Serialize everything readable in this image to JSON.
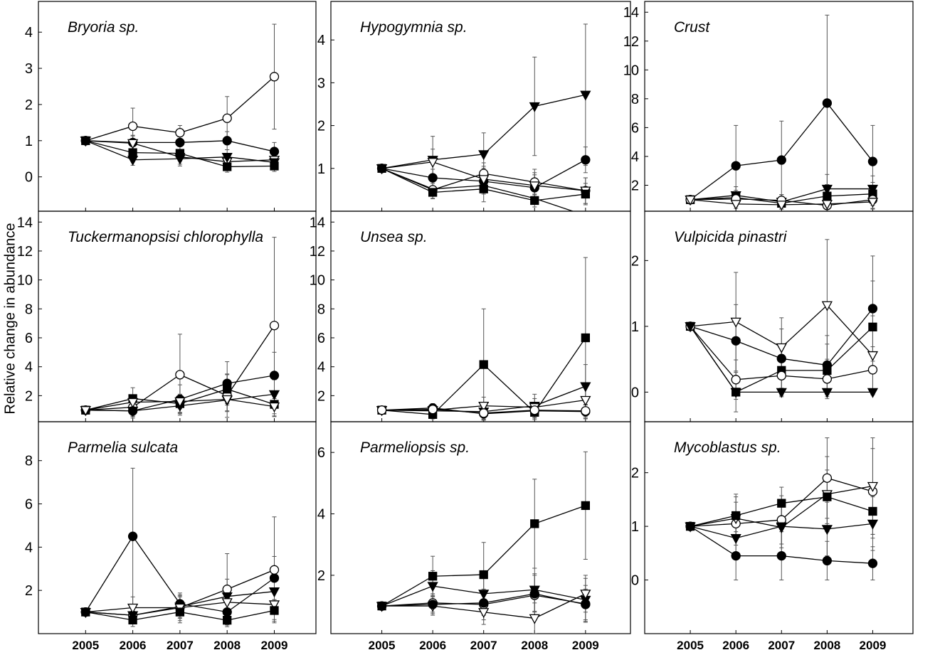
{
  "figure": {
    "ylabel": "Relative change in abundance",
    "years": [
      "2005",
      "2006",
      "2007",
      "2008",
      "2009"
    ]
  },
  "chart_data": [
    {
      "type": "line",
      "title": "Bryoria sp.",
      "x": [
        2005,
        2006,
        2007,
        2008,
        2009
      ],
      "ylim": [
        -0.95,
        4.85
      ],
      "yticks": [
        0,
        1,
        2,
        3,
        4
      ],
      "series": [
        {
          "marker": "circle-open",
          "values": [
            1.0,
            1.4,
            1.22,
            1.62,
            2.77
          ],
          "err": [
            0,
            0.5,
            0.2,
            0.6,
            1.45
          ]
        },
        {
          "marker": "circle-filled",
          "values": [
            1.0,
            0.95,
            0.95,
            1.0,
            0.7
          ],
          "err": [
            0,
            0.2,
            0.2,
            0.25,
            0.25
          ]
        },
        {
          "marker": "triangle-open",
          "values": [
            1.0,
            0.93,
            0.55,
            0.42,
            0.47
          ],
          "err": [
            0,
            0.2,
            0.2,
            0.2,
            0.2
          ]
        },
        {
          "marker": "square-filled",
          "values": [
            1.0,
            0.67,
            0.65,
            0.28,
            0.3
          ],
          "err": [
            0,
            0.2,
            0.2,
            0.15,
            0.15
          ]
        },
        {
          "marker": "triangle-filled",
          "values": [
            1.0,
            0.47,
            0.5,
            0.55,
            0.4
          ],
          "err": [
            0,
            0.15,
            0.2,
            0.2,
            0.2
          ]
        }
      ]
    },
    {
      "type": "line",
      "title": "Hypogymnia sp.",
      "x": [
        2005,
        2006,
        2007,
        2008,
        2009
      ],
      "ylim": [
        -0.0,
        4.9
      ],
      "yticks": [
        1,
        2,
        3,
        4
      ],
      "series": [
        {
          "marker": "triangle-filled",
          "values": [
            1.0,
            1.2,
            1.33,
            2.45,
            2.72
          ],
          "err": [
            0,
            0.55,
            0.5,
            1.15,
            1.65
          ]
        },
        {
          "marker": "circle-filled",
          "values": [
            1.0,
            0.78,
            0.7,
            0.55,
            1.2
          ],
          "err": [
            0,
            0.2,
            0.3,
            0.3,
            0.3
          ]
        },
        {
          "marker": "circle-open",
          "values": [
            1.0,
            0.5,
            0.88,
            0.68,
            0.48
          ],
          "err": [
            0,
            0.2,
            0.25,
            0.3,
            0.3
          ]
        },
        {
          "marker": "triangle-open",
          "values": [
            1.0,
            1.15,
            0.75,
            0.6,
            0.48
          ],
          "err": [
            0,
            0.3,
            0.3,
            0.3,
            0.3
          ]
        },
        {
          "marker": "square-filled",
          "values": [
            1.0,
            0.44,
            0.52,
            0.25,
            0.4
          ],
          "err": [
            0,
            0.15,
            0.3,
            0.15,
            0.25
          ]
        },
        {
          "marker": "none",
          "values": [
            1.0,
            0.52,
            0.6,
            0.3,
            -0.1
          ],
          "err": [
            0,
            0,
            0,
            0,
            0
          ]
        }
      ]
    },
    {
      "type": "line",
      "title": "Crust",
      "x": [
        2005,
        2006,
        2007,
        2008,
        2009
      ],
      "ylim": [
        0.2,
        14.75
      ],
      "yticks": [
        2,
        4,
        6,
        8,
        10,
        12,
        14
      ],
      "series": [
        {
          "marker": "circle-filled",
          "values": [
            1.0,
            3.35,
            3.75,
            7.7,
            3.65
          ],
          "err": [
            0,
            2.8,
            2.7,
            6.1,
            2.5
          ]
        },
        {
          "marker": "triangle-filled",
          "values": [
            1.0,
            1.3,
            0.85,
            1.75,
            1.75
          ],
          "err": [
            0,
            0.6,
            0.5,
            1.0,
            0.9
          ]
        },
        {
          "marker": "square-filled",
          "values": [
            1.0,
            1.15,
            0.75,
            1.25,
            1.4
          ],
          "err": [
            0,
            0.5,
            0.4,
            0.8,
            0.8
          ]
        },
        {
          "marker": "circle-open",
          "values": [
            1.0,
            1.05,
            0.95,
            0.6,
            1.0
          ],
          "err": [
            0,
            0.4,
            0.4,
            0.5,
            0.6
          ]
        },
        {
          "marker": "triangle-open",
          "values": [
            1.0,
            0.7,
            0.65,
            0.7,
            0.85
          ],
          "err": [
            0,
            0.3,
            0.3,
            0.5,
            0.5
          ]
        }
      ]
    },
    {
      "type": "line",
      "title": "Tuckermanopsisi chlorophylla",
      "x": [
        2005,
        2006,
        2007,
        2008,
        2009
      ],
      "ylim": [
        0.2,
        14.75
      ],
      "yticks": [
        2,
        4,
        6,
        8,
        10,
        12,
        14
      ],
      "series": [
        {
          "marker": "circle-open",
          "values": [
            1.0,
            1.2,
            3.45,
            2.0,
            6.85
          ],
          "err": [
            0,
            0.6,
            2.8,
            1.5,
            6.1
          ]
        },
        {
          "marker": "circle-filled",
          "values": [
            1.0,
            0.95,
            1.75,
            2.85,
            3.4
          ],
          "err": [
            0,
            0.5,
            1.0,
            1.5,
            1.6
          ]
        },
        {
          "marker": "square-filled",
          "values": [
            1.0,
            1.8,
            1.45,
            2.45,
            1.4
          ],
          "err": [
            0,
            0.75,
            0.6,
            1.0,
            0.8
          ]
        },
        {
          "marker": "triangle-filled",
          "values": [
            1.0,
            0.95,
            1.3,
            1.7,
            2.1
          ],
          "err": [
            0,
            0.4,
            0.5,
            0.8,
            1.0
          ]
        },
        {
          "marker": "triangle-open",
          "values": [
            1.0,
            1.55,
            1.6,
            1.75,
            1.25
          ],
          "err": [
            0,
            0.5,
            0.5,
            0.8,
            0.7
          ]
        }
      ]
    },
    {
      "type": "line",
      "title": "Unsea sp.",
      "x": [
        2005,
        2006,
        2007,
        2008,
        2009
      ],
      "ylim": [
        0.2,
        14.75
      ],
      "yticks": [
        2,
        4,
        6,
        8,
        10,
        12,
        14
      ],
      "series": [
        {
          "marker": "square-filled",
          "values": [
            1.0,
            0.7,
            4.15,
            0.85,
            6.0
          ],
          "err": [
            0,
            0.3,
            3.85,
            0.5,
            5.55
          ]
        },
        {
          "marker": "triangle-filled",
          "values": [
            1.0,
            0.95,
            0.9,
            1.3,
            2.65
          ],
          "err": [
            0,
            0.4,
            0.5,
            0.8,
            1.5
          ]
        },
        {
          "marker": "triangle-open",
          "values": [
            1.0,
            1.0,
            1.3,
            1.2,
            1.7
          ],
          "err": [
            0,
            0.4,
            0.6,
            0.6,
            0.9
          ]
        },
        {
          "marker": "circle-filled",
          "values": [
            1.0,
            1.15,
            0.75,
            0.95,
            0.9
          ],
          "err": [
            0,
            0.3,
            0.4,
            0.5,
            0.5
          ]
        },
        {
          "marker": "circle-open",
          "values": [
            1.0,
            1.05,
            0.8,
            1.0,
            0.95
          ],
          "err": [
            0,
            0.3,
            0.3,
            0.4,
            0.4
          ]
        }
      ]
    },
    {
      "type": "line",
      "title": "Vulpicida pinastri",
      "x": [
        2005,
        2006,
        2007,
        2008,
        2009
      ],
      "ylim": [
        -0.45,
        2.75
      ],
      "yticks": [
        0,
        1,
        2
      ],
      "series": [
        {
          "marker": "triangle-open",
          "values": [
            1.0,
            1.07,
            0.68,
            1.32,
            0.56
          ],
          "err": [
            0,
            0.75,
            0.45,
            1.0,
            0.6
          ]
        },
        {
          "marker": "circle-filled",
          "values": [
            1.0,
            0.78,
            0.51,
            0.41,
            1.27
          ],
          "err": [
            0,
            0.55,
            0.45,
            0.45,
            0.8
          ]
        },
        {
          "marker": "square-filled",
          "values": [
            1.0,
            0.0,
            0.33,
            0.33,
            0.99
          ],
          "err": [
            0,
            0.3,
            0.4,
            0.4,
            0.7
          ]
        },
        {
          "marker": "circle-open",
          "values": [
            1.0,
            0.19,
            0.25,
            0.2,
            0.34
          ],
          "err": [
            0,
            0.3,
            0.3,
            0.3,
            0.35
          ]
        },
        {
          "marker": "triangle-filled",
          "values": [
            1.0,
            0.0,
            0.0,
            0.0,
            0.0
          ],
          "err": [
            0,
            0,
            0,
            0,
            0
          ]
        }
      ]
    },
    {
      "type": "line",
      "title": "Parmelia sulcata",
      "x": [
        2005,
        2006,
        2007,
        2008,
        2009
      ],
      "ylim": [
        0.0,
        9.8
      ],
      "yticks": [
        2,
        4,
        6,
        8
      ],
      "series": [
        {
          "marker": "circle-filled",
          "values": [
            1.0,
            4.5,
            1.38,
            1.0,
            2.57
          ],
          "err": [
            0,
            3.15,
            0.5,
            0.6,
            1.0
          ]
        },
        {
          "marker": "circle-open",
          "values": [
            1.0,
            0.85,
            1.2,
            2.05,
            2.95
          ],
          "err": [
            0,
            0.4,
            0.6,
            1.65,
            2.45
          ]
        },
        {
          "marker": "triangle-filled",
          "values": [
            1.0,
            0.85,
            1.25,
            1.72,
            1.95
          ],
          "err": [
            0,
            0.4,
            0.5,
            0.8,
            0.9
          ]
        },
        {
          "marker": "triangle-open",
          "values": [
            1.0,
            1.2,
            1.2,
            1.45,
            1.35
          ],
          "err": [
            0,
            0.5,
            0.5,
            0.7,
            0.7
          ]
        },
        {
          "marker": "square-filled",
          "values": [
            1.0,
            0.63,
            1.0,
            0.62,
            1.07
          ],
          "err": [
            0,
            0.3,
            0.5,
            0.3,
            0.5
          ]
        }
      ]
    },
    {
      "type": "line",
      "title": "Parmeliopsis sp.",
      "x": [
        2005,
        2006,
        2007,
        2008,
        2009
      ],
      "ylim": [
        0.1,
        7.0
      ],
      "yticks": [
        2,
        4,
        6
      ],
      "series": [
        {
          "marker": "square-filled",
          "values": [
            1.0,
            1.97,
            2.02,
            3.68,
            4.27
          ],
          "err": [
            0,
            0.65,
            1.05,
            1.45,
            1.75
          ]
        },
        {
          "marker": "triangle-filled",
          "values": [
            1.0,
            1.65,
            1.4,
            1.53,
            1.2
          ],
          "err": [
            0,
            0.5,
            0.6,
            0.7,
            0.7
          ]
        },
        {
          "marker": "circle-open",
          "values": [
            1.0,
            1.1,
            1.05,
            1.35,
            1.07
          ],
          "err": [
            0,
            0.3,
            0.5,
            0.7,
            0.6
          ]
        },
        {
          "marker": "triangle-open",
          "values": [
            1.0,
            1.0,
            0.8,
            0.6,
            1.4
          ],
          "err": [
            0,
            0.3,
            0.4,
            0.5,
            0.6
          ]
        },
        {
          "marker": "circle-filled",
          "values": [
            1.0,
            1.05,
            1.1,
            1.4,
            1.05
          ],
          "err": [
            0,
            0.3,
            0.4,
            0.6,
            0.5
          ]
        }
      ]
    },
    {
      "type": "line",
      "title": "Mycoblastus sp.",
      "x": [
        2005,
        2006,
        2007,
        2008,
        2009
      ],
      "ylim": [
        -1.0,
        2.95
      ],
      "yticks": [
        0,
        1,
        2
      ],
      "series": [
        {
          "marker": "circle-open",
          "values": [
            1.0,
            1.05,
            1.12,
            1.9,
            1.65
          ],
          "err": [
            0,
            0.4,
            0.45,
            0.75,
            0.8
          ]
        },
        {
          "marker": "triangle-open",
          "values": [
            1.0,
            1.15,
            0.98,
            1.6,
            1.75
          ],
          "err": [
            0,
            0.4,
            0.5,
            0.7,
            0.9
          ]
        },
        {
          "marker": "square-filled",
          "values": [
            1.0,
            1.2,
            1.43,
            1.55,
            1.28
          ],
          "err": [
            0,
            0.4,
            0.3,
            0.5,
            0.5
          ]
        },
        {
          "marker": "triangle-filled",
          "values": [
            1.0,
            0.78,
            1.0,
            0.95,
            1.05
          ],
          "err": [
            0,
            0.4,
            0.4,
            0.5,
            0.5
          ]
        },
        {
          "marker": "circle-filled",
          "values": [
            1.0,
            0.45,
            0.45,
            0.36,
            0.31
          ],
          "err": [
            0,
            0.45,
            0.45,
            0.36,
            0.31
          ]
        }
      ]
    }
  ]
}
